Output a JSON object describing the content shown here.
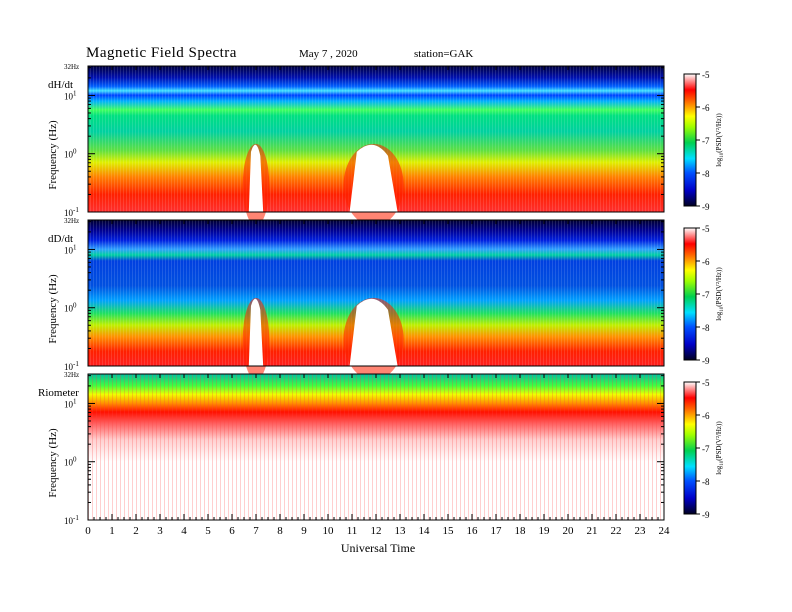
{
  "header": {
    "title": "Magnetic Field Spectra",
    "date": "May 7 , 2020",
    "station": "station=GAK"
  },
  "chart_data": {
    "type": "heatmap",
    "xlabel": "Universal Time",
    "x_ticks": [
      "0",
      "1",
      "2",
      "3",
      "4",
      "5",
      "6",
      "7",
      "8",
      "9",
      "10",
      "11",
      "12",
      "13",
      "14",
      "15",
      "16",
      "17",
      "18",
      "19",
      "20",
      "21",
      "22",
      "23",
      "24"
    ],
    "xlim": [
      0,
      24
    ],
    "panels": [
      {
        "name": "dH/dt",
        "ylabel": "Frequency (Hz)",
        "y_scale": "log",
        "ylim": [
          0.1,
          32
        ],
        "y_tick_labels": {
          "top": "32Hz",
          "t1": "10",
          "t1_exp": "1",
          "t0": "10",
          "t0_exp": "0",
          "tm1": "10",
          "tm1_exp": "-1"
        },
        "colorbar": {
          "label": "log10(PSD(V^2/Hz))",
          "label_base": "log",
          "label_sub": "10",
          "label_rest": "(PSD(V²/Hz))",
          "ticks": [
            "-5",
            "-6",
            "-7",
            "-8",
            "-9"
          ],
          "range": [
            -9,
            -5
          ]
        },
        "features": [
          {
            "type": "broadband-burst",
            "start_ut": 6.7,
            "end_ut": 7.3
          },
          {
            "type": "broadband-burst",
            "start_ut": 10.9,
            "end_ut": 12.9
          }
        ]
      },
      {
        "name": "dD/dt",
        "ylabel": "Frequency (Hz)",
        "y_scale": "log",
        "ylim": [
          0.1,
          32
        ],
        "y_tick_labels": {
          "top": "32Hz",
          "t1": "10",
          "t1_exp": "1",
          "t0": "10",
          "t0_exp": "0",
          "tm1": "10",
          "tm1_exp": "-1"
        },
        "colorbar": {
          "label": "log10(PSD(V^2/Hz))",
          "label_base": "log",
          "label_sub": "10",
          "label_rest": "(PSD(V²/Hz))",
          "ticks": [
            "-5",
            "-6",
            "-7",
            "-8",
            "-9"
          ],
          "range": [
            -9,
            -5
          ]
        },
        "features": [
          {
            "type": "broadband-burst",
            "start_ut": 6.7,
            "end_ut": 7.3
          },
          {
            "type": "broadband-burst",
            "start_ut": 10.9,
            "end_ut": 12.9
          }
        ]
      },
      {
        "name": "Riometer",
        "ylabel": "Frequency (Hz)",
        "y_scale": "log",
        "ylim": [
          0.1,
          32
        ],
        "y_tick_labels": {
          "top": "32Hz",
          "t1": "10",
          "t1_exp": "1",
          "t0": "10",
          "t0_exp": "0",
          "tm1": "10",
          "tm1_exp": "-1"
        },
        "colorbar": {
          "label": "log10(PSD(V^2/Hz))",
          "label_base": "log",
          "label_sub": "10",
          "label_rest": "(PSD(V²/Hz))",
          "ticks": [
            "-5",
            "-6",
            "-7",
            "-8",
            "-9"
          ],
          "range": [
            -9,
            -5
          ]
        },
        "features": []
      }
    ],
    "colors": {
      "cb_low": "#00002a",
      "cb_blue": "#0000ff",
      "cb_cyan": "#00e0ff",
      "cb_green": "#00d040",
      "cb_yellow": "#ffff00",
      "cb_red": "#ff0000",
      "cb_high": "#ffffff"
    }
  }
}
